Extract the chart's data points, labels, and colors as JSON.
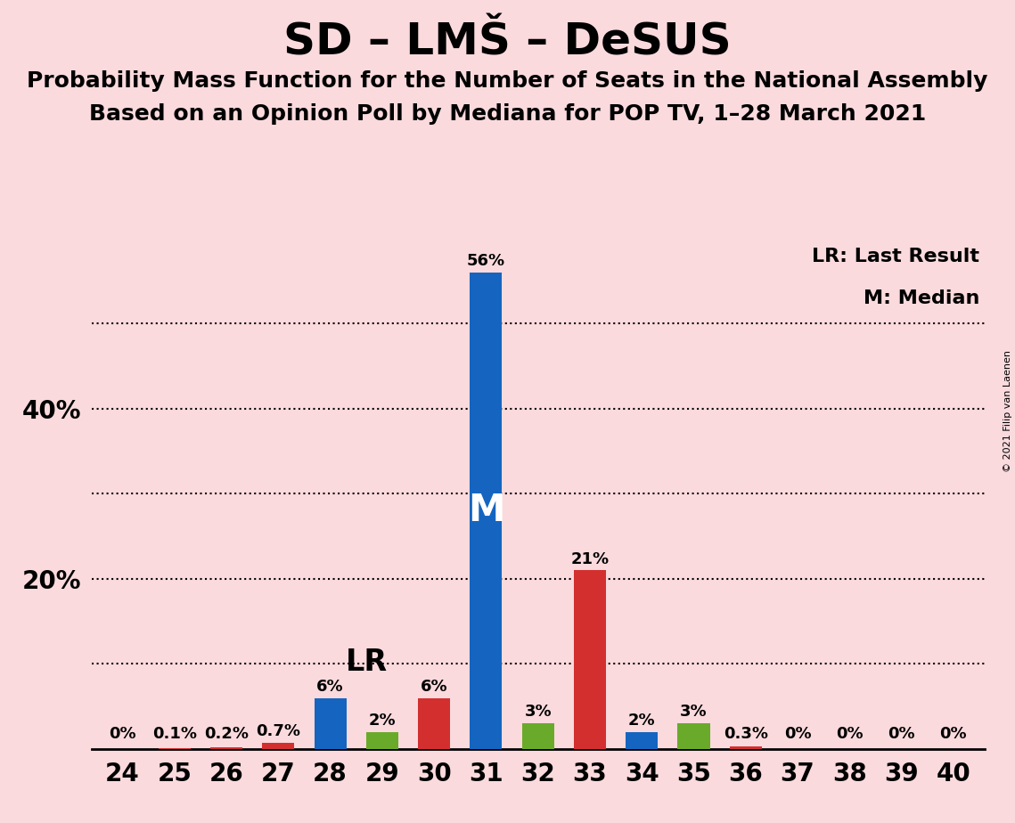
{
  "title": "SD – LMŠ – DeSUS",
  "subtitle1": "Probability Mass Function for the Number of Seats in the National Assembly",
  "subtitle2": "Based on an Opinion Poll by Mediana for POP TV, 1–28 March 2021",
  "copyright": "© 2021 Filip van Laenen",
  "seats": [
    24,
    25,
    26,
    27,
    28,
    29,
    30,
    31,
    32,
    33,
    34,
    35,
    36,
    37,
    38,
    39,
    40
  ],
  "blue_values": [
    0.0,
    0.0,
    0.0,
    0.0,
    6.0,
    0.0,
    0.0,
    56.0,
    0.0,
    0.0,
    2.0,
    0.0,
    0.0,
    0.0,
    0.0,
    0.0,
    0.0
  ],
  "green_values": [
    0.0,
    0.0,
    0.0,
    0.0,
    0.0,
    2.0,
    0.0,
    0.0,
    3.0,
    0.0,
    0.0,
    3.0,
    0.0,
    0.0,
    0.0,
    0.0,
    0.0
  ],
  "red_values": [
    0.0,
    0.1,
    0.2,
    0.7,
    0.0,
    0.0,
    6.0,
    0.0,
    0.0,
    21.0,
    0.0,
    0.0,
    0.3,
    0.0,
    0.0,
    0.0,
    0.0
  ],
  "all_labels": [
    "0%",
    "0.1%",
    "0.2%",
    "0.7%",
    "6%",
    "2%",
    "6%",
    "56%",
    "3%",
    "21%",
    "2%",
    "3%",
    "0.3%",
    "0%",
    "0%",
    "0%",
    "0%"
  ],
  "label_colors": [
    "red",
    "red",
    "red",
    "red",
    "blue",
    "green",
    "red",
    "blue",
    "green",
    "red",
    "blue",
    "green",
    "red",
    "red",
    "red",
    "red",
    "red"
  ],
  "blue_color": "#1565C0",
  "green_color": "#6aaa2a",
  "red_color": "#D32F2F",
  "background_color": "#FADADD",
  "ylim": [
    0,
    60
  ],
  "grid_yticks": [
    10,
    20,
    30,
    40,
    50
  ],
  "ytick_positions": [
    20,
    40
  ],
  "ytick_labels": [
    "20%",
    "40%"
  ],
  "LR_seat": 30,
  "M_seat": 31,
  "bar_width": 0.62,
  "label_fontsize": 13,
  "axis_fontsize": 20,
  "title_fontsize": 36,
  "subtitle_fontsize": 18,
  "legend_fontsize": 16,
  "LR_fontsize": 24,
  "M_fontsize": 30
}
